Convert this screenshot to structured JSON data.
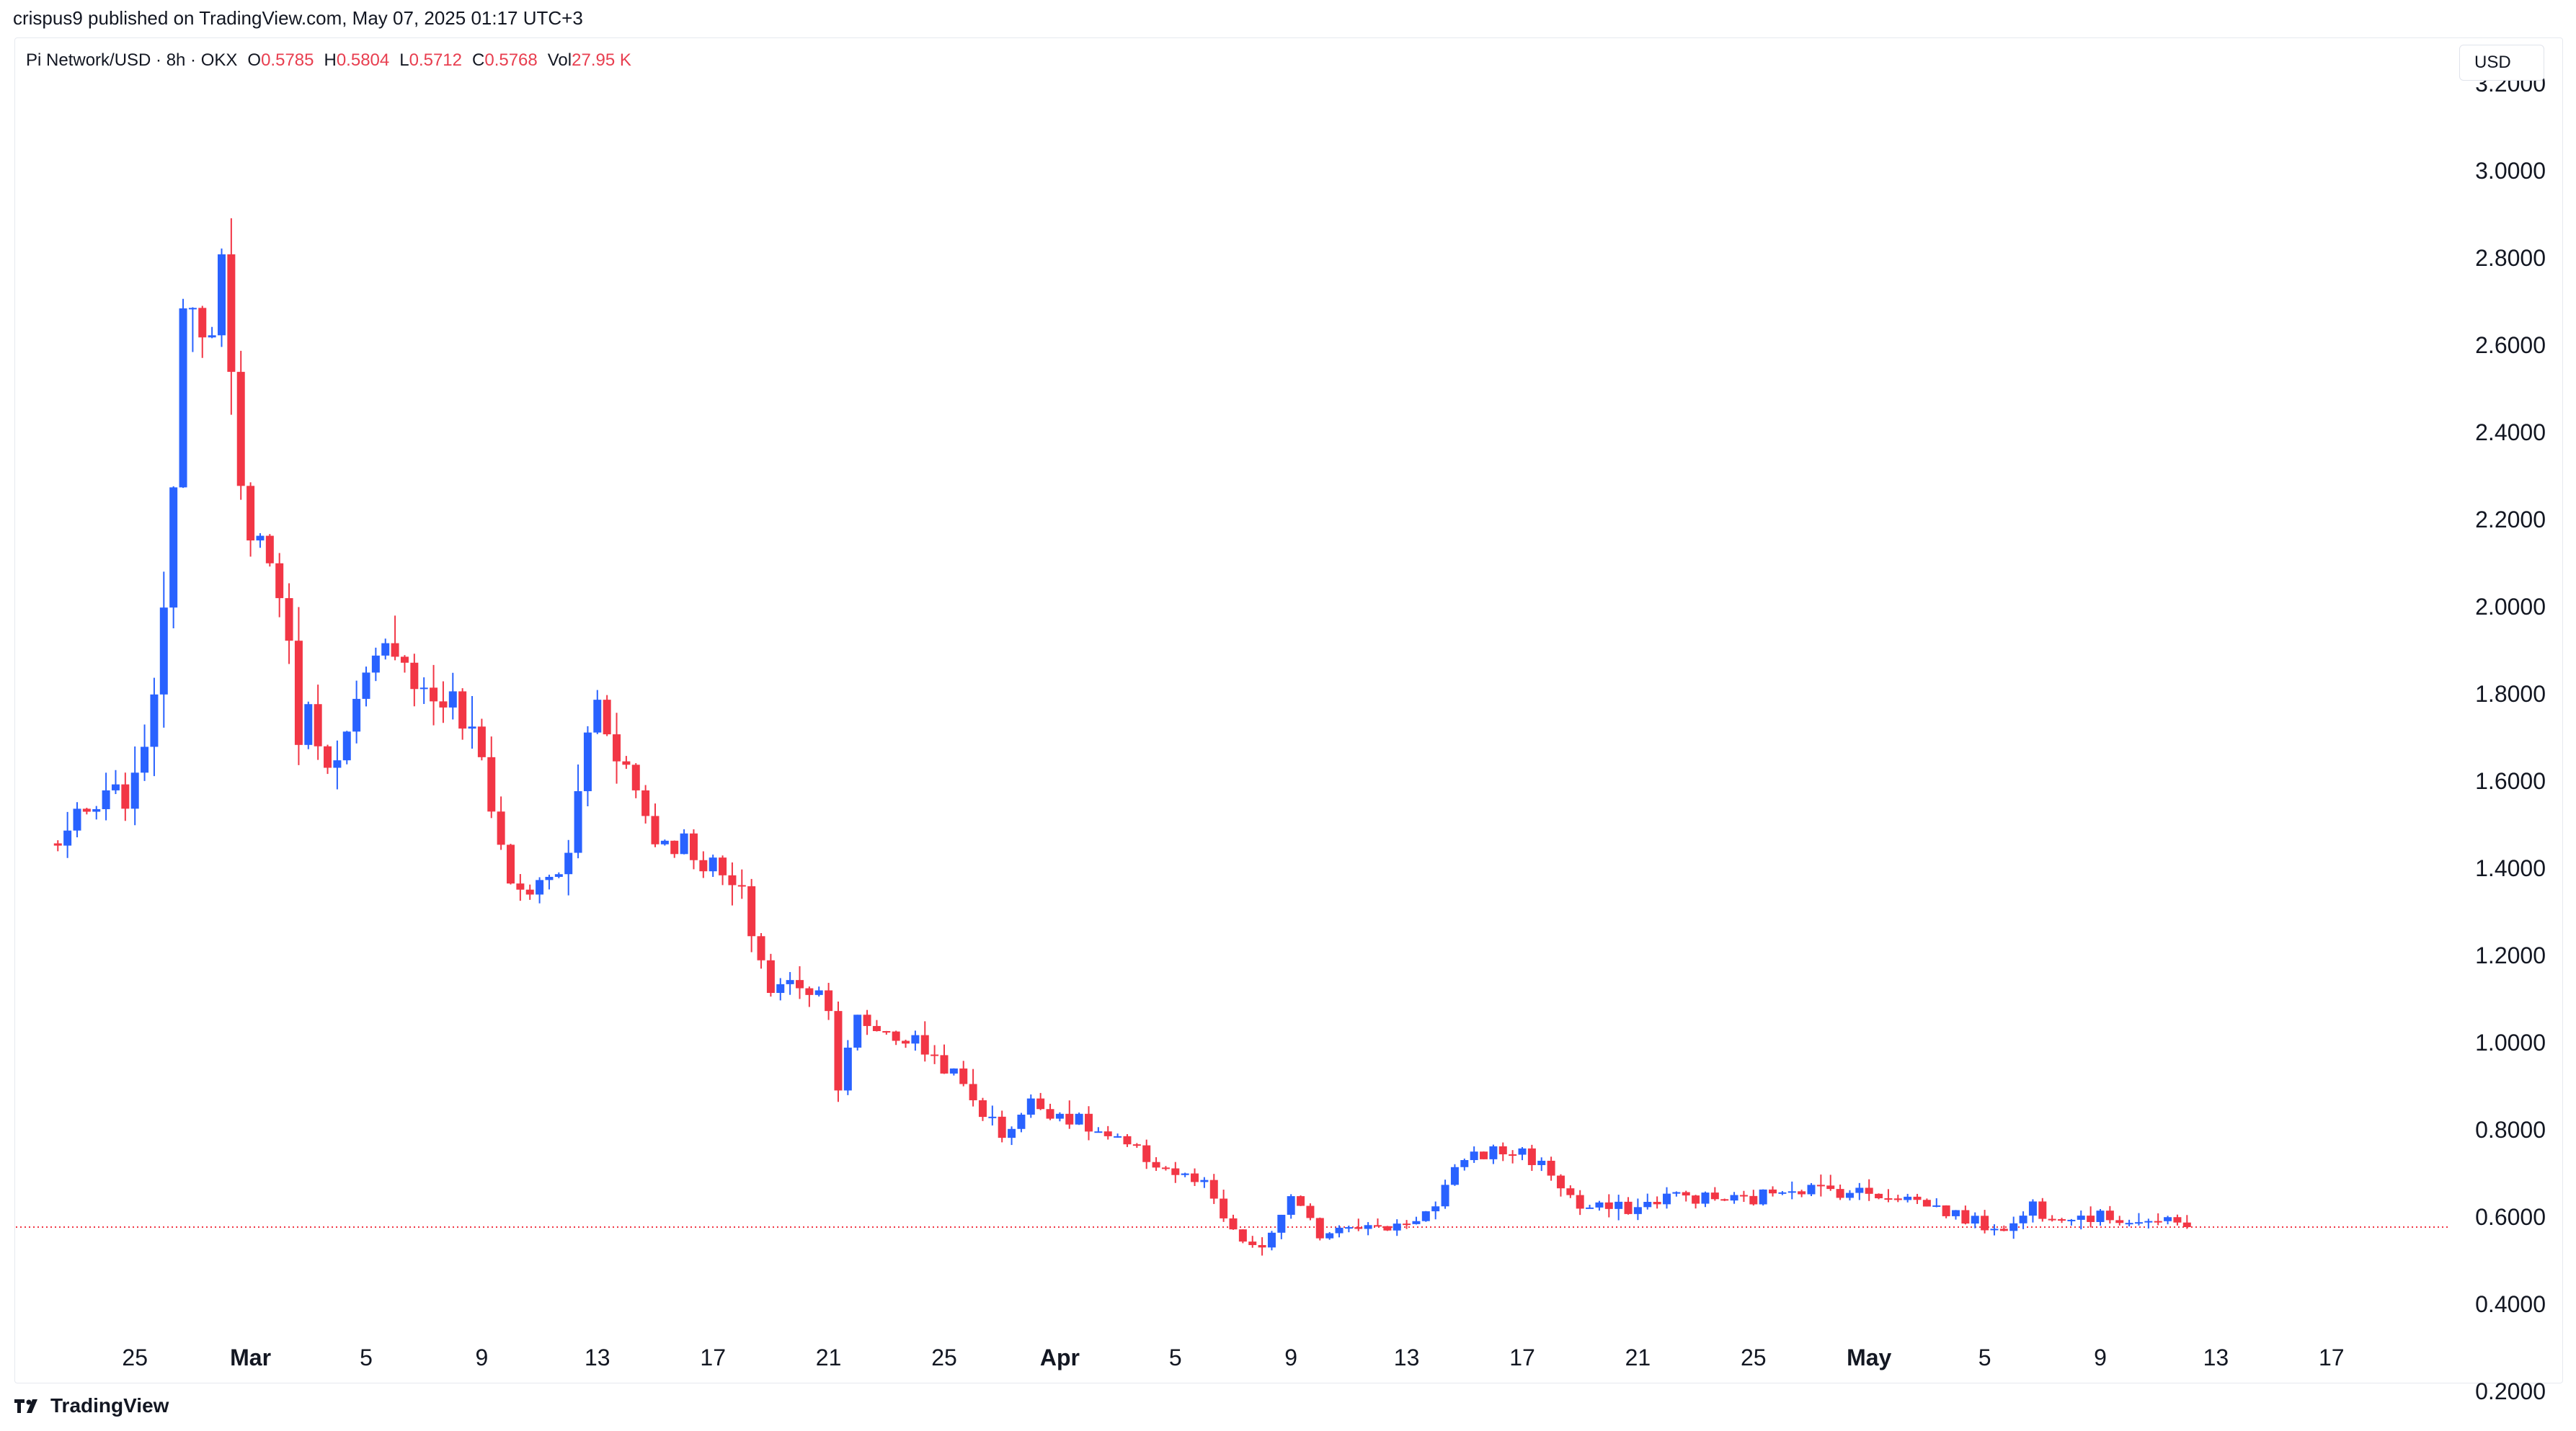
{
  "header": {
    "published_by": "crispus9 published on TradingView.com, May 07, 2025 01:17 UTC+3"
  },
  "legend": {
    "symbol": "Pi Network/USD · 8h · OKX",
    "open_label": "O",
    "open": "0.5785",
    "high_label": "H",
    "high": "0.5804",
    "low_label": "L",
    "low": "0.5712",
    "close_label": "C",
    "close": "0.5768",
    "vol_label": "Vol",
    "vol": "27.95 K"
  },
  "currency_button": "USD",
  "branding": {
    "logo_text": "TradingView"
  },
  "colors": {
    "up": "#2962ff",
    "down": "#f23645",
    "price_line": "#f23645",
    "text": "#131722"
  },
  "chart_data": {
    "type": "candlestick",
    "y_axis_ticks": [
      "0.2000",
      "0.4000",
      "0.6000",
      "0.8000",
      "1.0000",
      "1.2000",
      "1.4000",
      "1.6000",
      "1.8000",
      "2.0000",
      "2.2000",
      "2.4000",
      "2.6000",
      "2.8000",
      "3.0000",
      "3.2000"
    ],
    "ylim": [
      0.2,
      3.2
    ],
    "x_axis_ticks": [
      "25",
      "Mar",
      "5",
      "9",
      "13",
      "17",
      "21",
      "25",
      "Apr",
      "5",
      "9",
      "13",
      "17",
      "21",
      "25",
      "May",
      "5",
      "9",
      "13",
      "17"
    ],
    "bold_ticks": [
      "Mar",
      "Apr",
      "May"
    ],
    "x_range": [
      "2025-02-23",
      "2025-05-18"
    ],
    "last_price": 0.5768,
    "candle_interval": "8h",
    "anchors": [
      [
        "2025-02-22",
        1.45
      ],
      [
        "2025-02-24",
        1.55
      ],
      [
        "2025-02-25",
        1.58
      ],
      [
        "2025-02-26",
        1.95
      ],
      [
        "2025-02-26T16",
        2.7
      ],
      [
        "2025-02-27",
        2.75
      ],
      [
        "2025-02-27T16",
        2.6
      ],
      [
        "2025-02-28",
        2.75
      ],
      [
        "2025-02-28T16",
        2.25
      ],
      [
        "2025-03-01",
        2.2
      ],
      [
        "2025-03-02",
        2.05
      ],
      [
        "2025-03-02T16",
        1.72
      ],
      [
        "2025-03-03",
        1.75
      ],
      [
        "2025-03-04",
        1.63
      ],
      [
        "2025-03-05",
        1.82
      ],
      [
        "2025-03-06",
        1.93
      ],
      [
        "2025-03-07",
        1.8
      ],
      [
        "2025-03-08",
        1.78
      ],
      [
        "2025-03-09",
        1.65
      ],
      [
        "2025-03-10",
        1.36
      ],
      [
        "2025-03-11",
        1.35
      ],
      [
        "2025-03-12",
        1.42
      ],
      [
        "2025-03-12T16",
        1.72
      ],
      [
        "2025-03-13",
        1.78
      ],
      [
        "2025-03-14",
        1.63
      ],
      [
        "2025-03-15",
        1.47
      ],
      [
        "2025-03-16",
        1.46
      ],
      [
        "2025-03-17",
        1.4
      ],
      [
        "2025-03-18",
        1.33
      ],
      [
        "2025-03-19",
        1.12
      ],
      [
        "2025-03-20",
        1.14
      ],
      [
        "2025-03-21",
        1.1
      ],
      [
        "2025-03-21T08",
        0.9
      ],
      [
        "2025-03-22",
        1.05
      ],
      [
        "2025-03-24",
        1.0
      ],
      [
        "2025-03-25",
        0.95
      ],
      [
        "2025-03-27",
        0.79
      ],
      [
        "2025-03-28",
        0.86
      ],
      [
        "2025-03-29",
        0.84
      ],
      [
        "2025-03-31",
        0.77
      ],
      [
        "2025-04-02",
        0.7
      ],
      [
        "2025-04-03",
        0.67
      ],
      [
        "2025-04-04",
        0.56
      ],
      [
        "2025-04-05",
        0.52
      ],
      [
        "2025-04-05T16",
        0.61
      ],
      [
        "2025-04-06",
        0.64
      ],
      [
        "2025-04-07",
        0.56
      ],
      [
        "2025-04-08",
        0.59
      ],
      [
        "2025-04-09",
        0.57
      ],
      [
        "2025-04-10",
        0.59
      ],
      [
        "2025-04-11",
        0.62
      ],
      [
        "2025-04-12",
        0.74
      ],
      [
        "2025-04-13",
        0.75
      ],
      [
        "2025-04-14",
        0.75
      ],
      [
        "2025-04-15",
        0.7
      ],
      [
        "2025-04-16",
        0.62
      ],
      [
        "2025-04-17",
        0.62
      ],
      [
        "2025-04-18",
        0.62
      ],
      [
        "2025-04-19",
        0.65
      ],
      [
        "2025-04-21",
        0.64
      ],
      [
        "2025-04-22",
        0.64
      ],
      [
        "2025-04-23",
        0.67
      ],
      [
        "2025-04-25",
        0.66
      ],
      [
        "2025-04-27",
        0.65
      ],
      [
        "2025-04-28",
        0.63
      ],
      [
        "2025-04-30",
        0.58
      ],
      [
        "2025-05-01",
        0.58
      ],
      [
        "2025-05-01T16",
        0.63
      ],
      [
        "2025-05-02",
        0.61
      ],
      [
        "2025-05-04",
        0.6
      ],
      [
        "2025-05-06",
        0.59
      ],
      [
        "2025-05-07",
        0.5768
      ]
    ]
  }
}
